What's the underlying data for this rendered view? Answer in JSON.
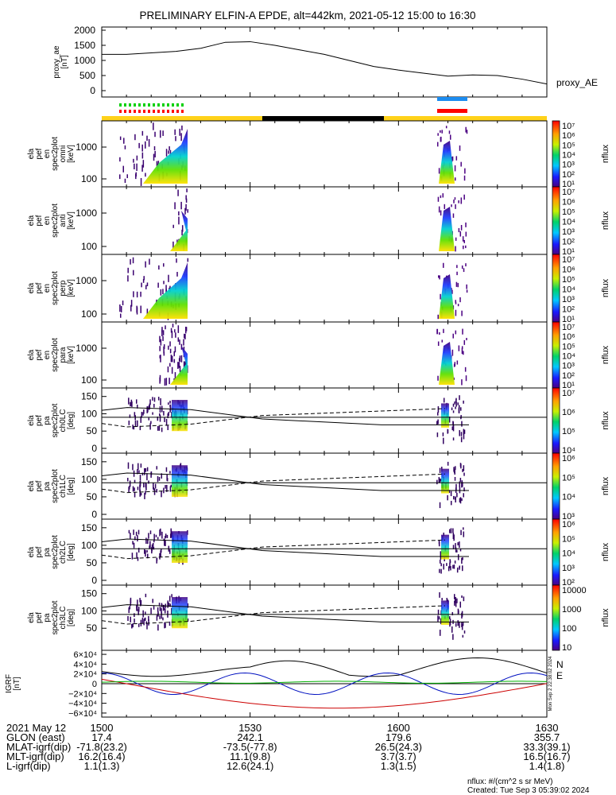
{
  "title": "PRELIMINARY ELFIN-A EPDE, alt=442km, 2021-05-12 15:00 to 16:30",
  "proxy_ae": {
    "ylabel": "proxy_ae\n[nT]",
    "legend": "proxy_AE",
    "yticks": [
      "2000",
      "1500",
      "1000",
      "500",
      "0"
    ],
    "ylim": [
      0,
      2000
    ],
    "x": [
      0,
      5,
      10,
      15,
      20,
      25,
      30,
      35,
      40,
      45,
      50,
      55,
      60,
      65,
      70,
      75,
      80,
      85,
      90
    ],
    "values": [
      1200,
      1200,
      1250,
      1300,
      1400,
      1600,
      1620,
      1500,
      1350,
      1200,
      1000,
      800,
      680,
      580,
      480,
      520,
      500,
      380,
      220
    ]
  },
  "spectrograms": [
    {
      "ylabel": "ela\npef\nen\nspec2plot\nomni\n[keV]",
      "yticks": [
        "1000",
        "100"
      ],
      "cbar_ticks": [
        "10⁷",
        "10⁶",
        "10⁵",
        "10⁴",
        "10³",
        "10²",
        "10¹"
      ],
      "cbar_label": "nflux"
    },
    {
      "ylabel": "ela\npef\nen\nspec2plot\nanti\n[keV]",
      "yticks": [
        "1000",
        "100"
      ],
      "cbar_ticks": [
        "10⁷",
        "10⁶",
        "10⁵",
        "10⁴",
        "10³",
        "10²",
        "10¹"
      ],
      "cbar_label": "nflux"
    },
    {
      "ylabel": "ela\npef\nen\nspec2plot\nperp\n[keV]",
      "yticks": [
        "1000",
        "100"
      ],
      "cbar_ticks": [
        "10⁷",
        "10⁶",
        "10⁵",
        "10⁴",
        "10³",
        "10²",
        "10¹"
      ],
      "cbar_label": "nflux"
    },
    {
      "ylabel": "ela\npef\nen\nspec2plot\npara\n[keV]",
      "yticks": [
        "1000",
        "100"
      ],
      "cbar_ticks": [
        "10⁷",
        "10⁶",
        "10⁵",
        "10⁴",
        "10³",
        "10²",
        "10¹"
      ],
      "cbar_label": "nflux"
    }
  ],
  "pitch_angle": [
    {
      "ylabel": "ela\npef\npa\nspec2plot\nch0LC\n[deg]",
      "yticks": [
        "150",
        "100",
        "50",
        "0"
      ],
      "cbar_ticks": [
        "10⁷",
        "10⁶",
        "10⁵",
        "10⁴"
      ],
      "cbar_label": "nflux"
    },
    {
      "ylabel": "ela\npef\npa\nspec2plot\nch1LC\n[deg]",
      "yticks": [
        "150",
        "100",
        "50",
        "0"
      ],
      "cbar_ticks": [
        "10⁶",
        "10⁵",
        "10⁴",
        "10³"
      ],
      "cbar_label": "nflux"
    },
    {
      "ylabel": "ela\npef\npa\nspec2plot\nch2LC\n[deg]",
      "yticks": [
        "150",
        "100",
        "50",
        "0"
      ],
      "cbar_ticks": [
        "10⁶",
        "10⁵",
        "10⁴",
        "10³",
        "10²"
      ],
      "cbar_label": "nflux"
    },
    {
      "ylabel": "ela\npef\npa\nspec2plot\nch3LC\n[deg]",
      "yticks": [
        "150",
        "100",
        "50"
      ],
      "cbar_ticks": [
        "10000",
        "1000",
        "100",
        "10"
      ],
      "cbar_label": "nflux"
    }
  ],
  "igrf": {
    "ylabel": "IGRF\n[nT]",
    "yticks": [
      "6×10⁴",
      "4×10⁴",
      "2×10⁴",
      "0",
      "−2×10⁴",
      "−4×10⁴",
      "−6×10⁴"
    ],
    "legend": [
      "N",
      "E"
    ],
    "legend_colors": [
      "#ff2020",
      "#00b000"
    ],
    "side_text": "Mon Sep  2 22:38:02 2024"
  },
  "xaxis": {
    "ticks": [
      "1500",
      "1530",
      "1600",
      "1630"
    ],
    "rows": [
      {
        "label": "2021 May 12",
        "vals": [
          "",
          "",
          "",
          ""
        ]
      },
      {
        "label": "GLON (east)",
        "vals": [
          "17.4",
          "242.1",
          "179.6",
          "355.7"
        ]
      },
      {
        "label": "MLAT-igrf(dip)",
        "vals": [
          "-71.8(23.2)",
          "-73.5(-77.8)",
          "26.5(24.3)",
          "33.3(39.1)"
        ]
      },
      {
        "label": "MLT-igrf(dip)",
        "vals": [
          "16.2(16.4)",
          "11.1(9.8)",
          "3.7(3.7)",
          "16.5(16.7)"
        ]
      },
      {
        "label": "L-igrf(dip)",
        "vals": [
          "1.1(1.3)",
          "12.6(24.1)",
          "1.3(1.5)",
          "1.4(1.8)"
        ]
      }
    ]
  },
  "footer": {
    "units": "nflux: #/(cm^2 s sr MeV)",
    "created": "Created: Tue Sep  3 05:39:02 2024"
  },
  "colors": {
    "day_bar": "#ffd21a",
    "night_bar": "#000000",
    "mark_green": "#00d000",
    "mark_red": "#ff0000",
    "mark_blue": "#1c8cf0"
  }
}
